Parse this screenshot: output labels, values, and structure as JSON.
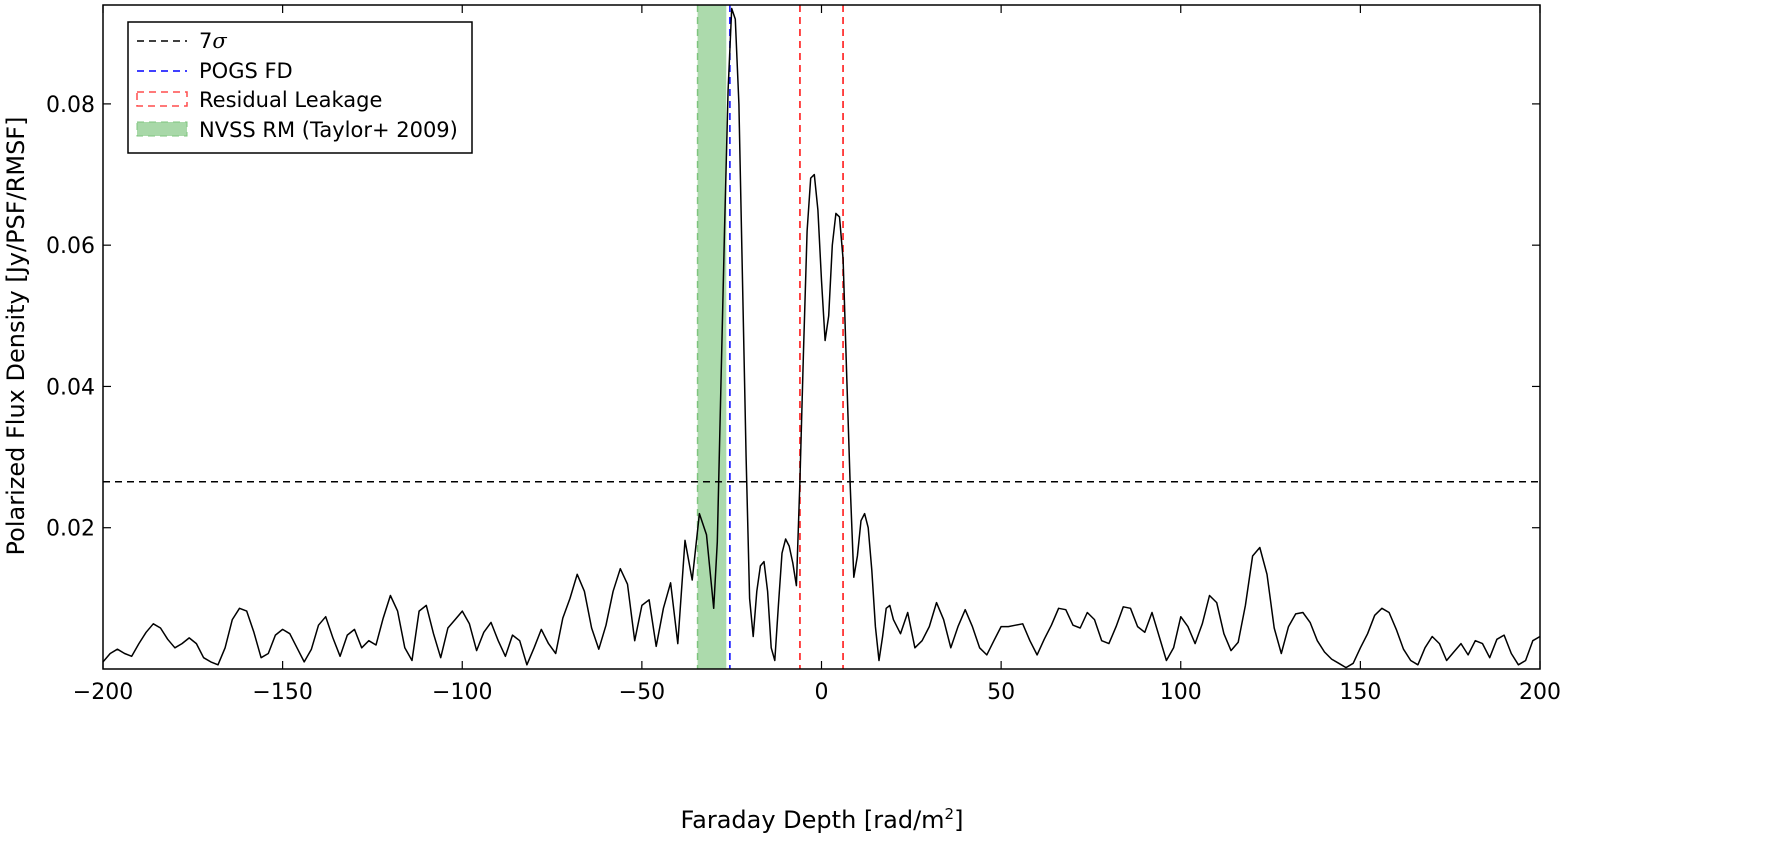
{
  "chart_data": {
    "type": "line",
    "title": "",
    "xlabel": "Faraday Depth [rad/m",
    "xlabel_sup": "2",
    "xlabel_close": "]",
    "ylabel": "Polarized Flux Density [Jy/PSF/RMSF]",
    "xlim": [
      -200,
      200
    ],
    "ylim": [
      0,
      0.094
    ],
    "grid": false,
    "legend_position": "top-left",
    "xticks": [
      -200,
      -150,
      -100,
      -50,
      0,
      50,
      100,
      150,
      200
    ],
    "xtick_labels": [
      "−200",
      "−150",
      "−100",
      "−50",
      "0",
      "50",
      "100",
      "150",
      "200"
    ],
    "yticks": [
      0.02,
      0.04,
      0.06,
      0.08
    ],
    "ytick_labels": [
      "0.02",
      "0.04",
      "0.06",
      "0.08"
    ],
    "legend": [
      {
        "label": "7",
        "label_symbol": "σ",
        "style": "dashed",
        "color": "#000000"
      },
      {
        "label": "POGS FD",
        "style": "dashed",
        "color": "#0000ff"
      },
      {
        "label": "Residual Leakage",
        "style": "dashed",
        "color": "#ff0000"
      },
      {
        "label": "NVSS RM (Taylor+ 2009)",
        "style": "band",
        "color": "#2ca02c"
      }
    ],
    "threshold_7sigma": 0.0265,
    "pogs_fd": -25.5,
    "residual_leakage": [
      -6.0,
      6.0
    ],
    "nvss_rm_band": [
      -34.5,
      -26.5
    ],
    "series": [
      {
        "color": "#000000",
        "points": [
          [
            -200,
            0.001
          ],
          [
            -198,
            0.0022
          ],
          [
            -196,
            0.0028
          ],
          [
            -194,
            0.0022
          ],
          [
            -192,
            0.0018
          ],
          [
            -190,
            0.0036
          ],
          [
            -188,
            0.0052
          ],
          [
            -186,
            0.0064
          ],
          [
            -184,
            0.0058
          ],
          [
            -182,
            0.0042
          ],
          [
            -180,
            0.003
          ],
          [
            -178,
            0.0036
          ],
          [
            -176,
            0.0044
          ],
          [
            -174,
            0.0036
          ],
          [
            -172,
            0.0016
          ],
          [
            -170,
            0.001
          ],
          [
            -168,
            0.0006
          ],
          [
            -166,
            0.003
          ],
          [
            -164,
            0.007
          ],
          [
            -162,
            0.0086
          ],
          [
            -160,
            0.0082
          ],
          [
            -158,
            0.0052
          ],
          [
            -156,
            0.0016
          ],
          [
            -154,
            0.0022
          ],
          [
            -152,
            0.0048
          ],
          [
            -150,
            0.0056
          ],
          [
            -148,
            0.005
          ],
          [
            -146,
            0.003
          ],
          [
            -144,
            0.001
          ],
          [
            -142,
            0.0028
          ],
          [
            -140,
            0.0062
          ],
          [
            -138,
            0.0074
          ],
          [
            -136,
            0.0044
          ],
          [
            -134,
            0.0018
          ],
          [
            -132,
            0.0048
          ],
          [
            -130,
            0.0056
          ],
          [
            -128,
            0.003
          ],
          [
            -126,
            0.004
          ],
          [
            -124,
            0.0034
          ],
          [
            -122,
            0.0072
          ],
          [
            -120,
            0.0104
          ],
          [
            -118,
            0.0082
          ],
          [
            -116,
            0.003
          ],
          [
            -114,
            0.0012
          ],
          [
            -112,
            0.0082
          ],
          [
            -110,
            0.009
          ],
          [
            -108,
            0.005
          ],
          [
            -106,
            0.0016
          ],
          [
            -104,
            0.0058
          ],
          [
            -102,
            0.007
          ],
          [
            -100,
            0.0082
          ],
          [
            -98,
            0.0064
          ],
          [
            -96,
            0.0026
          ],
          [
            -94,
            0.0052
          ],
          [
            -92,
            0.0066
          ],
          [
            -90,
            0.004
          ],
          [
            -88,
            0.0018
          ],
          [
            -86,
            0.0048
          ],
          [
            -84,
            0.004
          ],
          [
            -82,
            0.0006
          ],
          [
            -80,
            0.003
          ],
          [
            -78,
            0.0056
          ],
          [
            -76,
            0.0036
          ],
          [
            -74,
            0.0022
          ],
          [
            -72,
            0.0072
          ],
          [
            -70,
            0.01
          ],
          [
            -68,
            0.0134
          ],
          [
            -66,
            0.011
          ],
          [
            -64,
            0.0058
          ],
          [
            -62,
            0.0028
          ],
          [
            -60,
            0.0062
          ],
          [
            -58,
            0.011
          ],
          [
            -56,
            0.0142
          ],
          [
            -54,
            0.012
          ],
          [
            -52,
            0.004
          ],
          [
            -50,
            0.009
          ],
          [
            -48,
            0.0098
          ],
          [
            -46,
            0.0032
          ],
          [
            -44,
            0.0086
          ],
          [
            -42,
            0.0122
          ],
          [
            -40,
            0.0036
          ],
          [
            -38,
            0.0182
          ],
          [
            -36,
            0.0126
          ],
          [
            -34,
            0.022
          ],
          [
            -32,
            0.019
          ],
          [
            -30,
            0.0086
          ],
          [
            -29,
            0.018
          ],
          [
            -28,
            0.04
          ],
          [
            -27,
            0.062
          ],
          [
            -26,
            0.082
          ],
          [
            -25,
            0.0935
          ],
          [
            -24,
            0.092
          ],
          [
            -23,
            0.08
          ],
          [
            -22,
            0.055
          ],
          [
            -21,
            0.03
          ],
          [
            -20,
            0.01
          ],
          [
            -19,
            0.0046
          ],
          [
            -18,
            0.011
          ],
          [
            -17,
            0.0146
          ],
          [
            -16,
            0.0152
          ],
          [
            -15,
            0.011
          ],
          [
            -14,
            0.003
          ],
          [
            -13,
            0.0012
          ],
          [
            -12,
            0.009
          ],
          [
            -11,
            0.0164
          ],
          [
            -10,
            0.0184
          ],
          [
            -9,
            0.0174
          ],
          [
            -8,
            0.015
          ],
          [
            -7,
            0.0118
          ],
          [
            -6,
            0.0265
          ],
          [
            -5,
            0.045
          ],
          [
            -4,
            0.062
          ],
          [
            -3,
            0.0695
          ],
          [
            -2,
            0.07
          ],
          [
            -1,
            0.065
          ],
          [
            0,
            0.055
          ],
          [
            1,
            0.0465
          ],
          [
            2,
            0.05
          ],
          [
            3,
            0.06
          ],
          [
            4,
            0.0645
          ],
          [
            5,
            0.064
          ],
          [
            6,
            0.058
          ],
          [
            7,
            0.042
          ],
          [
            8,
            0.026
          ],
          [
            9,
            0.013
          ],
          [
            10,
            0.016
          ],
          [
            11,
            0.021
          ],
          [
            12,
            0.022
          ],
          [
            13,
            0.02
          ],
          [
            14,
            0.014
          ],
          [
            15,
            0.006
          ],
          [
            16,
            0.0012
          ],
          [
            17,
            0.0046
          ],
          [
            18,
            0.0086
          ],
          [
            19,
            0.009
          ],
          [
            20,
            0.007
          ],
          [
            22,
            0.005
          ],
          [
            24,
            0.008
          ],
          [
            26,
            0.003
          ],
          [
            28,
            0.004
          ],
          [
            30,
            0.006
          ],
          [
            32,
            0.0094
          ],
          [
            34,
            0.007
          ],
          [
            36,
            0.003
          ],
          [
            38,
            0.006
          ],
          [
            40,
            0.0084
          ],
          [
            42,
            0.006
          ],
          [
            44,
            0.003
          ],
          [
            46,
            0.002
          ],
          [
            48,
            0.004
          ],
          [
            50,
            0.006
          ],
          [
            52,
            0.006
          ],
          [
            54,
            0.0062
          ],
          [
            56,
            0.0064
          ],
          [
            58,
            0.004
          ],
          [
            60,
            0.002
          ],
          [
            62,
            0.0042
          ],
          [
            64,
            0.0062
          ],
          [
            66,
            0.0086
          ],
          [
            68,
            0.0084
          ],
          [
            70,
            0.0062
          ],
          [
            72,
            0.0058
          ],
          [
            74,
            0.008
          ],
          [
            76,
            0.007
          ],
          [
            78,
            0.004
          ],
          [
            80,
            0.0036
          ],
          [
            82,
            0.006
          ],
          [
            84,
            0.0088
          ],
          [
            86,
            0.0086
          ],
          [
            88,
            0.006
          ],
          [
            90,
            0.0052
          ],
          [
            92,
            0.008
          ],
          [
            94,
            0.0046
          ],
          [
            96,
            0.0012
          ],
          [
            98,
            0.003
          ],
          [
            100,
            0.0074
          ],
          [
            102,
            0.006
          ],
          [
            104,
            0.0036
          ],
          [
            106,
            0.0064
          ],
          [
            108,
            0.0104
          ],
          [
            110,
            0.0094
          ],
          [
            112,
            0.005
          ],
          [
            114,
            0.0026
          ],
          [
            116,
            0.0038
          ],
          [
            118,
            0.009
          ],
          [
            120,
            0.016
          ],
          [
            122,
            0.0172
          ],
          [
            124,
            0.0134
          ],
          [
            126,
            0.0058
          ],
          [
            128,
            0.0022
          ],
          [
            130,
            0.006
          ],
          [
            132,
            0.0078
          ],
          [
            134,
            0.008
          ],
          [
            136,
            0.0066
          ],
          [
            138,
            0.004
          ],
          [
            140,
            0.0024
          ],
          [
            142,
            0.0014
          ],
          [
            144,
            0.0008
          ],
          [
            146,
            0.0002
          ],
          [
            148,
            0.0008
          ],
          [
            150,
            0.003
          ],
          [
            152,
            0.005
          ],
          [
            154,
            0.0076
          ],
          [
            156,
            0.0086
          ],
          [
            158,
            0.008
          ],
          [
            160,
            0.0056
          ],
          [
            162,
            0.0028
          ],
          [
            164,
            0.0012
          ],
          [
            166,
            0.0006
          ],
          [
            168,
            0.003
          ],
          [
            170,
            0.0046
          ],
          [
            172,
            0.0036
          ],
          [
            174,
            0.0012
          ],
          [
            176,
            0.0024
          ],
          [
            178,
            0.0036
          ],
          [
            180,
            0.002
          ],
          [
            182,
            0.004
          ],
          [
            184,
            0.0036
          ],
          [
            186,
            0.0016
          ],
          [
            188,
            0.0042
          ],
          [
            190,
            0.0048
          ],
          [
            192,
            0.0022
          ],
          [
            194,
            0.0006
          ],
          [
            196,
            0.0012
          ],
          [
            198,
            0.004
          ],
          [
            200,
            0.0046
          ]
        ]
      }
    ]
  }
}
